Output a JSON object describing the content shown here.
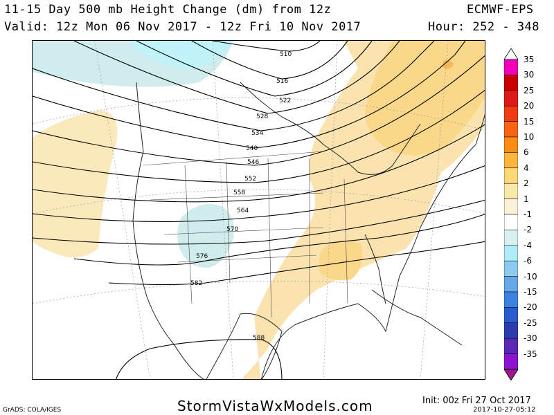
{
  "header": {
    "title": "11-15 Day 500 mb Height Change (dm) from 12z",
    "valid": "Valid: 12z Mon 06 Nov 2017 - 12z Fri 10 Nov 2017",
    "model": "ECMWF-EPS",
    "hour": "Hour: 252 - 348"
  },
  "colorbar": {
    "labels": [
      "35",
      "30",
      "25",
      "20",
      "15",
      "10",
      "6",
      "4",
      "2",
      "1",
      "-1",
      "-2",
      "-4",
      "-6",
      "-10",
      "-15",
      "-20",
      "-25",
      "-30",
      "-35"
    ],
    "colors": [
      "#f000b8",
      "#c80000",
      "#e01818",
      "#f03c14",
      "#f86414",
      "#fa8c14",
      "#fcb43c",
      "#fcd878",
      "#fae8a8",
      "#faf2d6",
      "#ffffff",
      "#d8f0f0",
      "#b0ecf8",
      "#8ccaf0",
      "#64a8e8",
      "#3c82e0",
      "#285ccc",
      "#2a3cb0",
      "#5a28b4",
      "#8c14d0"
    ],
    "top_color": "#ffffff",
    "bottom_color": "#a0148c"
  },
  "map": {
    "contour_labels": [
      "510",
      "516",
      "522",
      "528",
      "534",
      "540",
      "546",
      "552",
      "558",
      "564",
      "570",
      "576",
      "582",
      "588"
    ]
  },
  "footer": {
    "site": "StormVistaWxModels.com",
    "grads": "GrADS: COLA/IGES",
    "init": "Init: 00z Fri 27 Oct 2017",
    "generated": "2017-10-27-05:12"
  }
}
